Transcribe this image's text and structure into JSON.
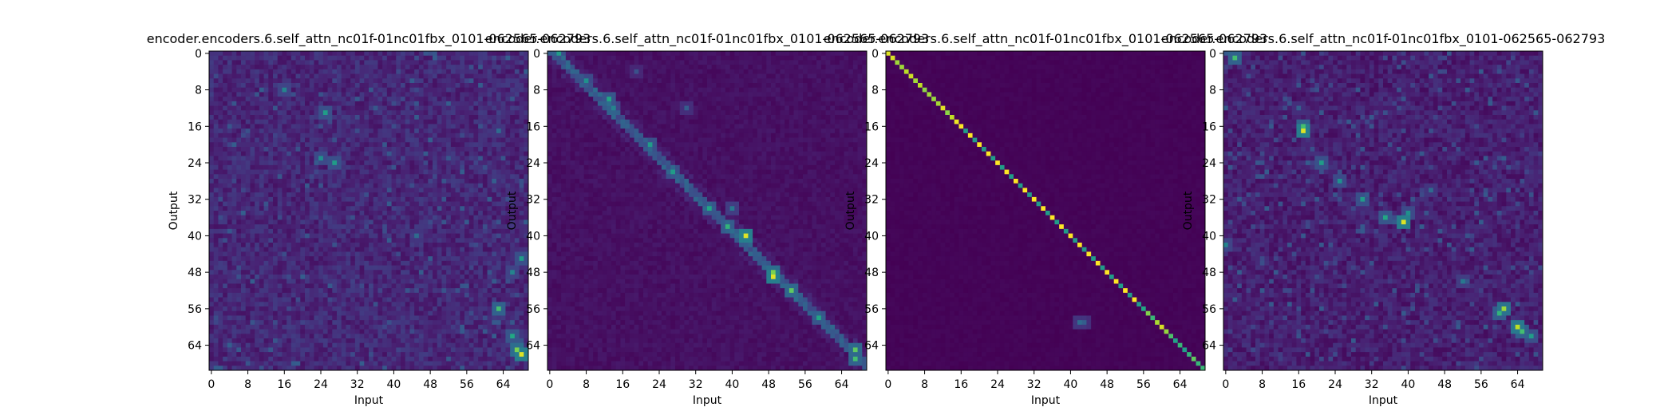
{
  "chart_data": [
    {
      "type": "heatmap",
      "title": "encoder.encoders.6.self_attn_nc01f-01nc01fbx_0101-062565-062793",
      "xlabel": "Input",
      "ylabel": "Output",
      "xticks": [
        "0",
        "8",
        "16",
        "24",
        "32",
        "40",
        "48",
        "56",
        "64"
      ],
      "yticks": [
        "0",
        "8",
        "16",
        "24",
        "32",
        "40",
        "48",
        "56",
        "64"
      ],
      "size": [
        70,
        70
      ],
      "colormap": "viridis",
      "pattern": "diffuse",
      "hotspots": [
        [
          8,
          16,
          0.45
        ],
        [
          13,
          25,
          0.55
        ],
        [
          24,
          27,
          0.55
        ],
        [
          23,
          24,
          0.5
        ],
        [
          40,
          45,
          0.35
        ],
        [
          56,
          63,
          0.7
        ],
        [
          66,
          68,
          0.95
        ],
        [
          65,
          67,
          0.8
        ],
        [
          62,
          66,
          0.6
        ],
        [
          45,
          68,
          0.55
        ],
        [
          48,
          66,
          0.45
        ],
        [
          17,
          63,
          0.35
        ],
        [
          28,
          62,
          0.3
        ]
      ]
    },
    {
      "type": "heatmap",
      "title": "encoder.encoders.6.self_attn_nc01f-01nc01fbx_0101-062565-062793",
      "xlabel": "Input",
      "ylabel": "Output",
      "xticks": [
        "0",
        "8",
        "16",
        "24",
        "32",
        "40",
        "48",
        "56",
        "64"
      ],
      "yticks": [
        "0",
        "8",
        "16",
        "24",
        "32",
        "40",
        "48",
        "56",
        "64"
      ],
      "size": [
        70,
        70
      ],
      "colormap": "viridis",
      "pattern": "diagonal-offset",
      "hotspots": [
        [
          0,
          2,
          0.55
        ],
        [
          6,
          8,
          0.5
        ],
        [
          10,
          13,
          0.6
        ],
        [
          12,
          14,
          0.45
        ],
        [
          20,
          22,
          0.55
        ],
        [
          26,
          27,
          0.55
        ],
        [
          34,
          35,
          0.6
        ],
        [
          38,
          39,
          0.65
        ],
        [
          40,
          43,
          0.95
        ],
        [
          48,
          49,
          0.8
        ],
        [
          49,
          49,
          0.95
        ],
        [
          52,
          53,
          0.75
        ],
        [
          58,
          59,
          0.6
        ],
        [
          65,
          67,
          0.75
        ],
        [
          67,
          67,
          0.7
        ],
        [
          34,
          40,
          0.4
        ],
        [
          12,
          30,
          0.3
        ],
        [
          4,
          19,
          0.25
        ]
      ]
    },
    {
      "type": "heatmap",
      "title": "encoder.encoders.6.self_attn_nc01f-01nc01fbx_0101-062565-062793",
      "xlabel": "Input",
      "ylabel": "Output",
      "xticks": [
        "0",
        "8",
        "16",
        "24",
        "32",
        "40",
        "48",
        "56",
        "64"
      ],
      "yticks": [
        "0",
        "8",
        "16",
        "24",
        "32",
        "40",
        "48",
        "56",
        "64"
      ],
      "size": [
        70,
        70
      ],
      "colormap": "viridis",
      "pattern": "diagonal-sharp",
      "hotspots": [
        [
          59,
          42,
          0.35
        ],
        [
          59,
          43,
          0.3
        ]
      ]
    },
    {
      "type": "heatmap",
      "title": "encoder.encoders.6.self_attn_nc01f-01nc01fbx_0101-062565-062793",
      "xlabel": "Input",
      "ylabel": "Output",
      "xticks": [
        "0",
        "8",
        "16",
        "24",
        "32",
        "40",
        "48",
        "56",
        "64"
      ],
      "yticks": [
        "0",
        "8",
        "16",
        "24",
        "32",
        "40",
        "48",
        "56",
        "64"
      ],
      "size": [
        70,
        70
      ],
      "colormap": "viridis",
      "pattern": "scattered",
      "hotspots": [
        [
          1,
          2,
          0.7
        ],
        [
          17,
          17,
          0.95
        ],
        [
          16,
          17,
          0.7
        ],
        [
          24,
          21,
          0.55
        ],
        [
          28,
          25,
          0.5
        ],
        [
          32,
          30,
          0.55
        ],
        [
          36,
          35,
          0.6
        ],
        [
          37,
          39,
          0.95
        ],
        [
          35,
          40,
          0.5
        ],
        [
          56,
          61,
          0.85
        ],
        [
          57,
          60,
          0.65
        ],
        [
          60,
          64,
          0.9
        ],
        [
          61,
          65,
          0.7
        ],
        [
          62,
          67,
          0.55
        ],
        [
          42,
          0,
          0.45
        ],
        [
          12,
          16,
          0.3
        ],
        [
          50,
          52,
          0.4
        ],
        [
          30,
          45,
          0.35
        ]
      ]
    }
  ]
}
